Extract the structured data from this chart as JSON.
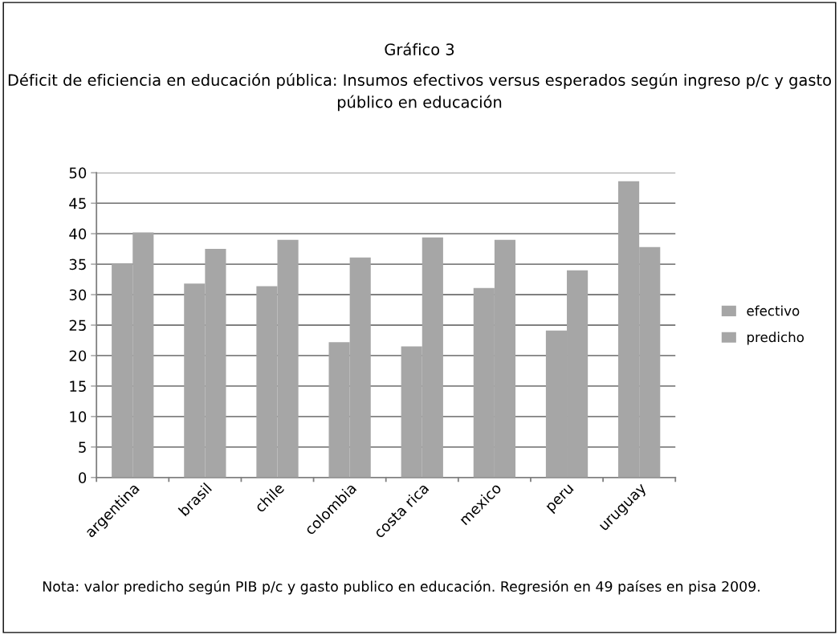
{
  "chart_data": {
    "type": "bar",
    "title": "Gráfico 3",
    "subtitle": "Déficit de eficiencia en educación pública: Insumos efectivos versus esperados según ingreso p/c y gasto público en educación",
    "categories": [
      "argentina",
      "brasil",
      "chile",
      "colombia",
      "costa rica",
      "mexico",
      "peru",
      "uruguay"
    ],
    "series": [
      {
        "name": "efectivo",
        "color": "#a6a6a6",
        "values": [
          35.0,
          31.8,
          31.4,
          22.2,
          21.5,
          31.1,
          24.1,
          48.6
        ]
      },
      {
        "name": "predicho",
        "color": "#a6a6a6",
        "values": [
          40.2,
          37.5,
          39.0,
          36.1,
          39.4,
          39.0,
          34.0,
          37.8
        ]
      }
    ],
    "ylim": [
      0,
      50
    ],
    "yticks": [
      0,
      5,
      10,
      15,
      20,
      25,
      30,
      35,
      40,
      45,
      50
    ],
    "grid": "y",
    "legend": "right",
    "annotations": [
      "Nota: valor predicho según PIB p/c y gasto publico en educación. Regresión en 49 países en pisa 2009."
    ]
  }
}
